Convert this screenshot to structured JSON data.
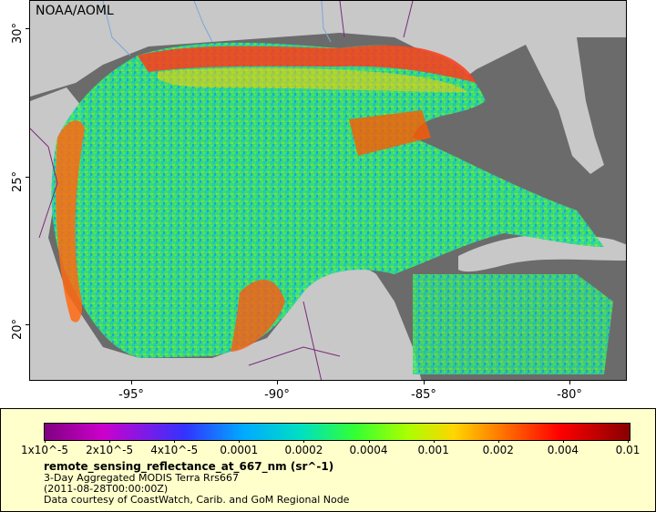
{
  "map": {
    "credit": "NOAA/AOML",
    "lat_ticks": [
      "30°",
      "25°",
      "20°"
    ],
    "lon_ticks": [
      "-95°",
      "-90°",
      "-85°",
      "-80°"
    ]
  },
  "legend": {
    "colorbar_labels": [
      "1x10^-5",
      "2x10^-5",
      "4x10^-5",
      "0.0001",
      "0.0002",
      "0.0004",
      "0.001",
      "0.002",
      "0.004",
      "0.01"
    ],
    "variable": "remote_sensing_reflectance_at_667_nm (sr^-1)",
    "dataset": "3-Day Aggregated MODIS Terra Rrs667",
    "time": "(2011-08-28T00:00:00Z)",
    "credit": "Data courtesy of CoastWatch, Carib. and GoM Regional Node"
  },
  "colors": {
    "land": "#c8c8c8",
    "no_data": "#6b6b6b",
    "legend_bg": "#ffffcc",
    "borders": "#7a2a7a",
    "rivers": "#7aa6d8"
  }
}
